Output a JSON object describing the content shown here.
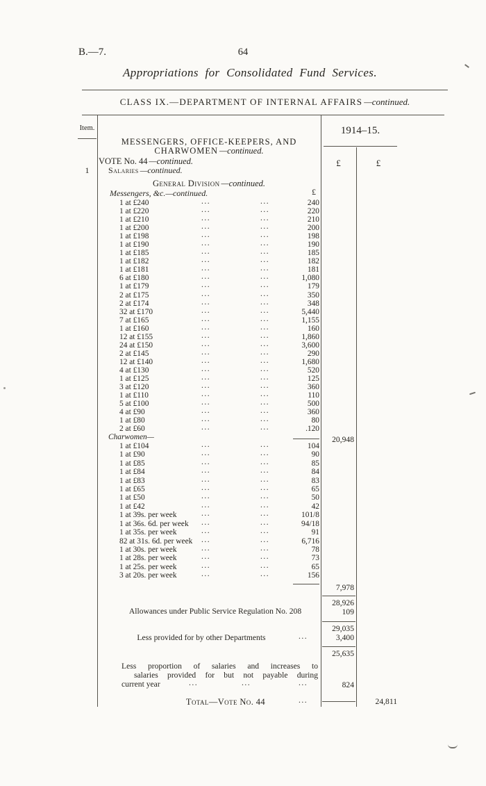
{
  "page": {
    "doc_ref": "B.—7.",
    "page_number": "64",
    "running_title": "Appropriations for Consolidated Fund Services.",
    "class_heading": "CLASS IX.—DEPARTMENT OF INTERNAL AFFAIRS",
    "continued": "—continued."
  },
  "table": {
    "item_col_header": "Item.",
    "year_col_header": "1914–15.",
    "pound_left": "£",
    "pound_right": "£",
    "pound_inner": "£",
    "item_number": "1",
    "group_heading_line1": "MESSENGERS, OFFICE-KEEPERS, AND",
    "group_heading_line2": "CHARWOMEN",
    "vote_heading": "VOTE No. 44",
    "salaries_heading": "Salaries",
    "division_heading": "General Division",
    "messengers_heading": "Messengers, &c.—continued.",
    "charwomen_heading": "Charwomen—",
    "continued": "—continued.",
    "dots": "..."
  },
  "salary_rows": {
    "messengers": [
      {
        "label": "1 at £240",
        "amount": "240"
      },
      {
        "label": "1 at £220",
        "amount": "220"
      },
      {
        "label": "1 at £210",
        "amount": "210"
      },
      {
        "label": "1 at £200",
        "amount": "200"
      },
      {
        "label": "1 at £198",
        "amount": "198"
      },
      {
        "label": "1 at £190",
        "amount": "190"
      },
      {
        "label": "1 at £185",
        "amount": "185"
      },
      {
        "label": "1 at £182",
        "amount": "182"
      },
      {
        "label": "1 at £181",
        "amount": "181"
      },
      {
        "label": "6 at £180",
        "amount": "1,080"
      },
      {
        "label": "1 at £179",
        "amount": "179"
      },
      {
        "label": "2 at £175",
        "amount": "350"
      },
      {
        "label": "2 at £174",
        "amount": "348"
      },
      {
        "label": "32 at £170",
        "amount": "5,440"
      },
      {
        "label": "7 at £165",
        "amount": "1,155"
      },
      {
        "label": "1 at £160",
        "amount": "160"
      },
      {
        "label": "12 at £155",
        "amount": "1,860"
      },
      {
        "label": "24 at £150",
        "amount": "3,600"
      },
      {
        "label": "2 at £145",
        "amount": "290"
      },
      {
        "label": "12 at £140",
        "amount": "1,680"
      },
      {
        "label": "4 at £130",
        "amount": "520"
      },
      {
        "label": "1 at £125",
        "amount": "125"
      },
      {
        "label": "3 at £120",
        "amount": "360"
      },
      {
        "label": "1 at £110",
        "amount": "110"
      },
      {
        "label": "5 at £100",
        "amount": "500"
      },
      {
        "label": "4 at £90",
        "amount": "360"
      },
      {
        "label": "1 at £80",
        "amount": "80"
      },
      {
        "label": "2 at £60",
        "amount": ".120"
      }
    ],
    "charwomen": [
      {
        "label": "1 at £104",
        "amount": "104"
      },
      {
        "label": "1 at £90",
        "amount": "90"
      },
      {
        "label": "1 at £85",
        "amount": "85"
      },
      {
        "label": "1 at £84",
        "amount": "84"
      },
      {
        "label": "1 at £83",
        "amount": "83"
      },
      {
        "label": "1 at £65",
        "amount": "65"
      },
      {
        "label": "1 at £50",
        "amount": "50"
      },
      {
        "label": "1 at £42",
        "amount": "42"
      },
      {
        "label": "1 at 39s. per week",
        "amount": "101/8"
      },
      {
        "label": "1 at 36s. 6d. per week",
        "amount": "94/18"
      },
      {
        "label": "1 at 35s. per week",
        "amount": "91"
      },
      {
        "label": "82 at 31s. 6d. per week",
        "amount": "6,716"
      },
      {
        "label": "1 at 30s. per week",
        "amount": "78"
      },
      {
        "label": "1 at 28s. per week",
        "amount": "73"
      },
      {
        "label": "1 at 25s. per week",
        "amount": "65"
      },
      {
        "label": "3 at 20s. per week",
        "amount": "156"
      }
    ]
  },
  "summary": {
    "messengers_subtotal": "20,948",
    "charwomen_subtotal": "7,978",
    "salaries_total": "28,926",
    "allowances_label": "Allowances under Public Service Regulation No. 208",
    "allowances_amount": "109",
    "allowances_total": "29,035",
    "less_departments_label": "Less provided for by other Departments",
    "less_departments_amount": "3,400",
    "net_total": "25,635",
    "less_proportion_line1": "Less proportion of salaries and increases to",
    "less_proportion_line2": "salaries provided for but not payable during",
    "less_proportion_line3": "current year",
    "less_proportion_amount": "824",
    "total_label": "Total—Vote No. 44",
    "vote_total": "24,811"
  }
}
